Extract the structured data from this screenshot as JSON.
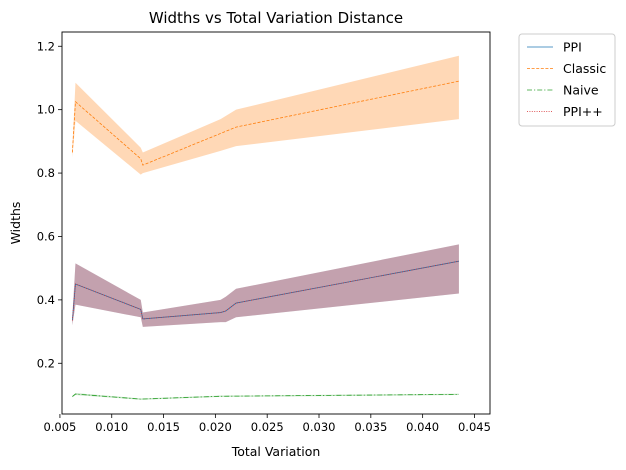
{
  "chart_data": {
    "type": "line",
    "title": "Widths vs Total Variation Distance",
    "xlabel": "Total Variation",
    "ylabel": "Widths",
    "xlim": [
      0.0052,
      0.0465
    ],
    "ylim": [
      0.04,
      1.245
    ],
    "xticks": [
      0.005,
      0.01,
      0.015,
      0.02,
      0.025,
      0.03,
      0.035,
      0.04,
      0.045
    ],
    "xtick_labels": [
      "0.005",
      "0.010",
      "0.015",
      "0.020",
      "0.025",
      "0.030",
      "0.035",
      "0.040",
      "0.045"
    ],
    "yticks": [
      0.2,
      0.4,
      0.6,
      0.8,
      1.0,
      1.2
    ],
    "ytick_labels": [
      "0.2",
      "0.4",
      "0.6",
      "0.8",
      "1.0",
      "1.2"
    ],
    "grid": false,
    "legend_position": "outside-top-right",
    "series": [
      {
        "name": "PPI",
        "color": "#1f77b4",
        "dash": "solid",
        "x": [
          0.0062,
          0.0065,
          0.0128,
          0.013,
          0.0205,
          0.021,
          0.022,
          0.0435
        ],
        "y": [
          0.335,
          0.45,
          0.37,
          0.34,
          0.36,
          0.365,
          0.39,
          0.522
        ],
        "lower": [
          0.32,
          0.385,
          0.345,
          0.315,
          0.33,
          0.33,
          0.345,
          0.42
        ],
        "upper": [
          0.35,
          0.515,
          0.4,
          0.36,
          0.4,
          0.41,
          0.435,
          0.575
        ]
      },
      {
        "name": "Classic",
        "color": "#ff7f0e",
        "dash": "dashed",
        "x": [
          0.0062,
          0.0065,
          0.0128,
          0.013,
          0.0205,
          0.022,
          0.0435
        ],
        "y": [
          0.865,
          1.025,
          0.845,
          0.825,
          0.925,
          0.945,
          1.09
        ],
        "lower": [
          0.85,
          0.965,
          0.795,
          0.8,
          0.87,
          0.885,
          0.97
        ],
        "upper": [
          0.88,
          1.085,
          0.88,
          0.865,
          0.97,
          1.0,
          1.17
        ]
      },
      {
        "name": "Naive",
        "color": "#2ca02c",
        "dash": "dashdot",
        "x": [
          0.0062,
          0.0065,
          0.0128,
          0.0205,
          0.0435
        ],
        "y": [
          0.095,
          0.103,
          0.087,
          0.096,
          0.102
        ],
        "lower": [
          0.093,
          0.1,
          0.085,
          0.094,
          0.1
        ],
        "upper": [
          0.097,
          0.106,
          0.089,
          0.098,
          0.104
        ]
      },
      {
        "name": "PPI++",
        "color": "#d62728",
        "dash": "dotted",
        "x": [
          0.0062,
          0.0065,
          0.0128,
          0.013,
          0.0205,
          0.021,
          0.022,
          0.0435
        ],
        "y": [
          0.335,
          0.45,
          0.37,
          0.34,
          0.36,
          0.365,
          0.39,
          0.522
        ],
        "lower": [
          0.32,
          0.385,
          0.345,
          0.315,
          0.33,
          0.33,
          0.345,
          0.42
        ],
        "upper": [
          0.35,
          0.515,
          0.4,
          0.36,
          0.4,
          0.41,
          0.435,
          0.575
        ]
      }
    ]
  }
}
